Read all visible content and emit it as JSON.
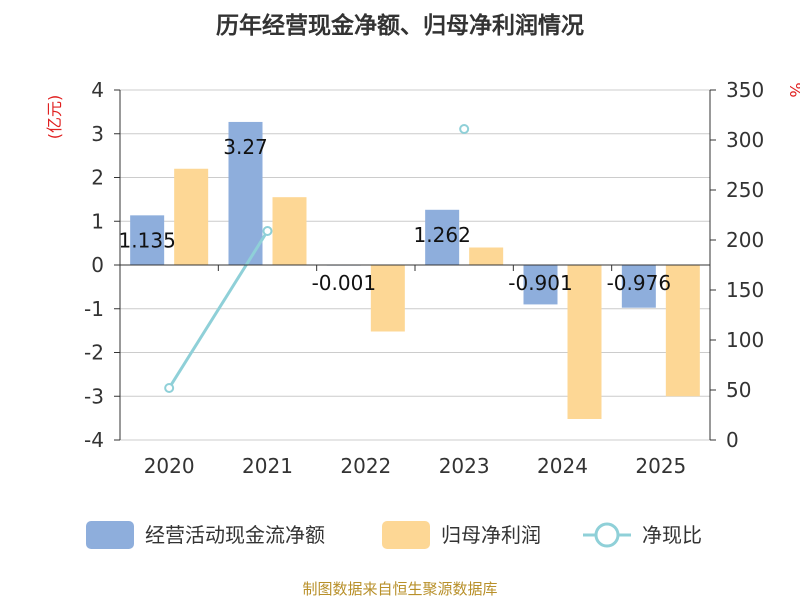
{
  "title": "历年经营现金净额、归母净利润情况",
  "source_note": "制图数据来自恒生聚源数据库",
  "colors": {
    "cash": "#8eaedc",
    "profit": "#fdd795",
    "ratio": "#8fd0d8"
  },
  "chart_data": {
    "type": "bar",
    "title": "历年经营现金净额、归母净利润情况",
    "categories": [
      "2020",
      "2021",
      "2022",
      "2023",
      "2024",
      "2025"
    ],
    "y_left": {
      "label": "(亿元)",
      "range": [
        -4,
        4
      ],
      "ticks": [
        "4",
        "3",
        "2",
        "1",
        "0",
        "-1",
        "-2",
        "-3",
        "-4"
      ]
    },
    "y_right": {
      "label": "%",
      "range": [
        0,
        350
      ],
      "ticks": [
        "350",
        "300",
        "250",
        "200",
        "150",
        "100",
        "50",
        "0"
      ]
    },
    "grid": true,
    "legend_position": "bottom",
    "series": [
      {
        "name": "经营活动现金流净额",
        "type": "bar",
        "axis": "left",
        "values": [
          1.135,
          3.27,
          -0.001,
          1.262,
          -0.901,
          -0.976
        ],
        "labels": [
          "1.135",
          "3.27",
          "-0.001",
          "1.262",
          "-0.901",
          "-0.976"
        ]
      },
      {
        "name": "归母净利润",
        "type": "bar",
        "axis": "left",
        "values": [
          2.2,
          1.55,
          -1.52,
          0.4,
          -3.52,
          -3.0
        ]
      },
      {
        "name": "净现比",
        "type": "line",
        "axis": "right",
        "values": [
          52,
          209,
          null,
          311,
          null,
          null
        ]
      }
    ]
  }
}
